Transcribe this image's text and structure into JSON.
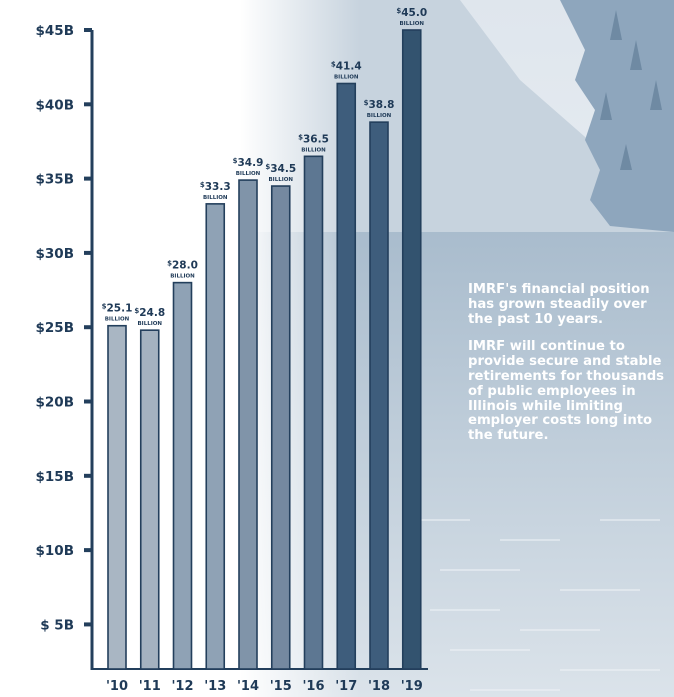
{
  "colors": {
    "axis": "#233f5c",
    "label": "#1f3a57",
    "note_text": "#ffffff",
    "sky": "#eef2f6",
    "lake": "#bccbd8",
    "forest": "#8ea6bd",
    "bar_shades": [
      "#a9b6c3",
      "#a4b2c0",
      "#8fa2b5",
      "#8fa2b5",
      "#8094a9",
      "#7589a0",
      "#5d7792",
      "#3e5d7c",
      "#3e5d7c",
      "#33536f"
    ]
  },
  "annotation": {
    "paragraph1": "IMRF's financial position has grown steadily over the past 10 years.",
    "paragraph2": "IMRF will continue to provide secure and stable retirements for thousands of public employees in Illinois while limiting employer costs long into the future."
  },
  "chart_data": {
    "type": "bar",
    "categories": [
      "'10",
      "'11",
      "'12",
      "'13",
      "'14",
      "'15",
      "'16",
      "'17",
      "'18",
      "'19"
    ],
    "values": [
      25.1,
      24.8,
      28.0,
      33.3,
      34.9,
      34.5,
      36.5,
      41.4,
      38.8,
      45.0
    ],
    "data_label_prefix": "$",
    "data_label_unit": "BILLION",
    "y_ticks": [
      5,
      10,
      15,
      20,
      25,
      30,
      35,
      40,
      45
    ],
    "y_tick_labels": [
      "$ 5B",
      "$10B",
      "$15B",
      "$20B",
      "$25B",
      "$30B",
      "$35B",
      "$40B",
      "$45B"
    ],
    "ylim": [
      2,
      45
    ],
    "grid": false,
    "legend": "none"
  }
}
